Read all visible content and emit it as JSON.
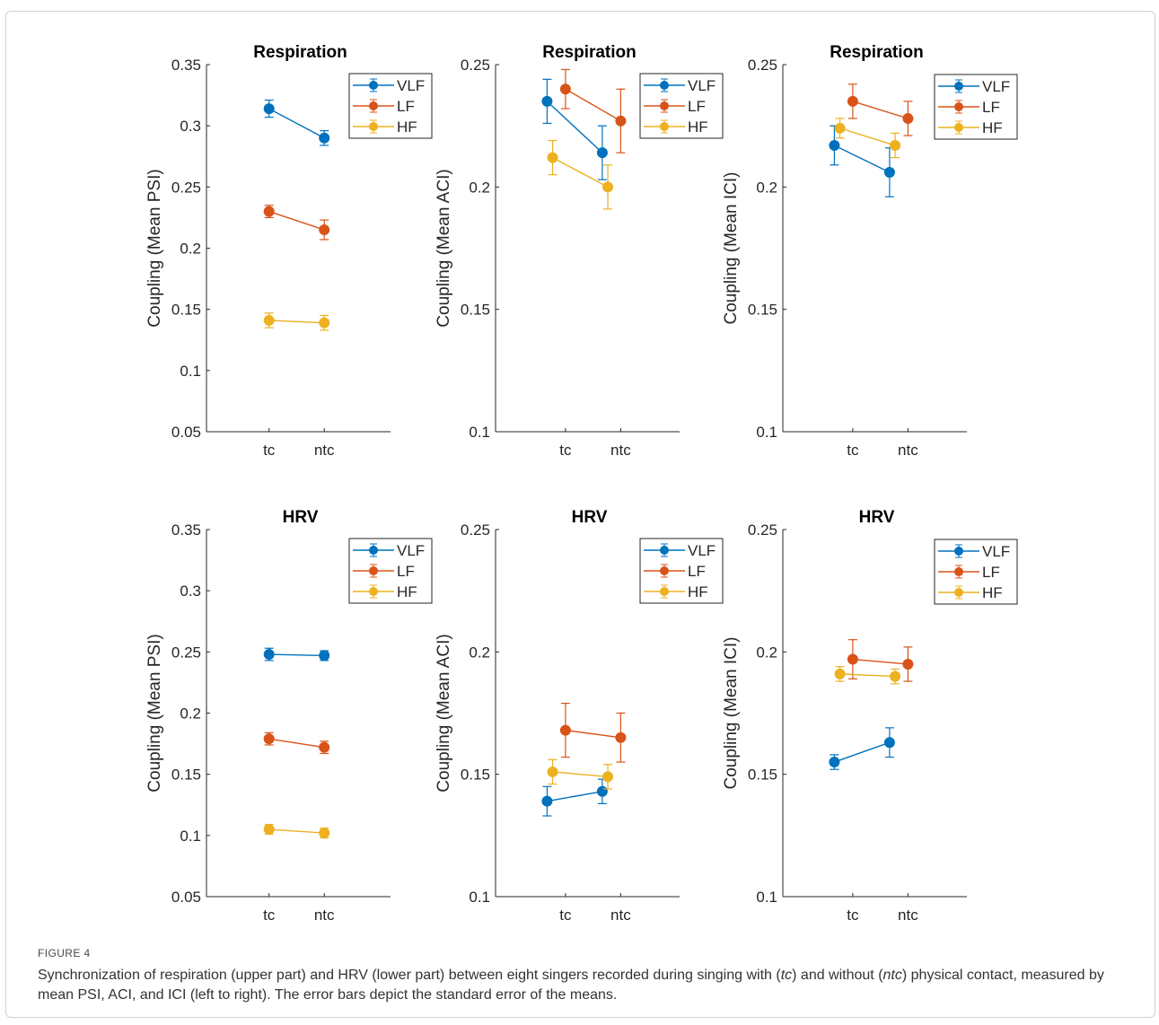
{
  "chart_data": [
    {
      "type": "line",
      "title": "Respiration",
      "ylabel": "Coupling (Mean PSI)",
      "categories": [
        "tc",
        "ntc"
      ],
      "ylim": [
        0.05,
        0.35
      ],
      "yticks": [
        "0.05",
        "0.1",
        "0.15",
        "0.2",
        "0.25",
        "0.3",
        "0.35"
      ],
      "legend": "top-right",
      "series": [
        {
          "name": "VLF",
          "color": "#0072BD",
          "values": [
            0.314,
            0.29
          ],
          "errors": [
            0.007,
            0.006
          ]
        },
        {
          "name": "LF",
          "color": "#D95319",
          "values": [
            0.23,
            0.215
          ],
          "errors": [
            0.005,
            0.008
          ]
        },
        {
          "name": "HF",
          "color": "#EDB120",
          "values": [
            0.141,
            0.139
          ],
          "errors": [
            0.006,
            0.006
          ]
        }
      ]
    },
    {
      "type": "line",
      "title": "Respiration",
      "ylabel": "Coupling (Mean ACI)",
      "categories": [
        "tc",
        "ntc"
      ],
      "ylim": [
        0.1,
        0.25
      ],
      "yticks": [
        "0.1",
        "0.15",
        "0.2",
        "0.25"
      ],
      "legend": "top-right",
      "series": [
        {
          "name": "VLF",
          "color": "#0072BD",
          "values": [
            0.235,
            0.214
          ],
          "errors": [
            0.009,
            0.011
          ]
        },
        {
          "name": "LF",
          "color": "#D95319",
          "values": [
            0.24,
            0.227
          ],
          "errors": [
            0.008,
            0.013
          ]
        },
        {
          "name": "HF",
          "color": "#EDB120",
          "values": [
            0.212,
            0.2
          ],
          "errors": [
            0.007,
            0.009
          ]
        }
      ]
    },
    {
      "type": "line",
      "title": "Respiration",
      "ylabel": "Coupling (Mean ICI)",
      "categories": [
        "tc",
        "ntc"
      ],
      "ylim": [
        0.1,
        0.25
      ],
      "yticks": [
        "0.1",
        "0.15",
        "0.2",
        "0.25"
      ],
      "legend": "top-right",
      "series": [
        {
          "name": "VLF",
          "color": "#0072BD",
          "values": [
            0.217,
            0.206
          ],
          "errors": [
            0.008,
            0.01
          ]
        },
        {
          "name": "LF",
          "color": "#D95319",
          "values": [
            0.235,
            0.228
          ],
          "errors": [
            0.007,
            0.007
          ]
        },
        {
          "name": "HF",
          "color": "#EDB120",
          "values": [
            0.224,
            0.217
          ],
          "errors": [
            0.004,
            0.005
          ]
        }
      ]
    },
    {
      "type": "line",
      "title": "HRV",
      "ylabel": "Coupling (Mean PSI)",
      "categories": [
        "tc",
        "ntc"
      ],
      "ylim": [
        0.05,
        0.35
      ],
      "yticks": [
        "0.05",
        "0.1",
        "0.15",
        "0.2",
        "0.25",
        "0.3",
        "0.35"
      ],
      "legend": "top-right",
      "series": [
        {
          "name": "VLF",
          "color": "#0072BD",
          "values": [
            0.248,
            0.247
          ],
          "errors": [
            0.005,
            0.004
          ]
        },
        {
          "name": "LF",
          "color": "#D95319",
          "values": [
            0.179,
            0.172
          ],
          "errors": [
            0.005,
            0.005
          ]
        },
        {
          "name": "HF",
          "color": "#EDB120",
          "values": [
            0.105,
            0.102
          ],
          "errors": [
            0.004,
            0.004
          ]
        }
      ]
    },
    {
      "type": "line",
      "title": "HRV",
      "ylabel": "Coupling (Mean ACI)",
      "categories": [
        "tc",
        "ntc"
      ],
      "ylim": [
        0.1,
        0.25
      ],
      "yticks": [
        "0.1",
        "0.15",
        "0.2",
        "0.25"
      ],
      "legend": "top-right",
      "series": [
        {
          "name": "VLF",
          "color": "#0072BD",
          "values": [
            0.139,
            0.143
          ],
          "errors": [
            0.006,
            0.005
          ]
        },
        {
          "name": "LF",
          "color": "#D95319",
          "values": [
            0.168,
            0.165
          ],
          "errors": [
            0.011,
            0.01
          ]
        },
        {
          "name": "HF",
          "color": "#EDB120",
          "values": [
            0.151,
            0.149
          ],
          "errors": [
            0.005,
            0.005
          ]
        }
      ]
    },
    {
      "type": "line",
      "title": "HRV",
      "ylabel": "Coupling (Mean ICI)",
      "categories": [
        "tc",
        "ntc"
      ],
      "ylim": [
        0.1,
        0.25
      ],
      "yticks": [
        "0.1",
        "0.15",
        "0.2",
        "0.25"
      ],
      "legend": "top-right",
      "series": [
        {
          "name": "VLF",
          "color": "#0072BD",
          "values": [
            0.155,
            0.163
          ],
          "errors": [
            0.003,
            0.006
          ]
        },
        {
          "name": "LF",
          "color": "#D95319",
          "values": [
            0.197,
            0.195
          ],
          "errors": [
            0.008,
            0.007
          ]
        },
        {
          "name": "HF",
          "color": "#EDB120",
          "values": [
            0.191,
            0.19
          ],
          "errors": [
            0.003,
            0.003
          ]
        }
      ]
    }
  ],
  "caption": {
    "label": "FIGURE 4",
    "text_1": "Synchronization of respiration (upper part) and HRV (lower part) between eight singers recorded during singing with (",
    "em_1": "tc",
    "text_2": ") and without (",
    "em_2": "ntc",
    "text_3": ") physical contact, measured by mean PSI, ACI, and ICI (left to right). The error bars depict the standard error of the means."
  }
}
